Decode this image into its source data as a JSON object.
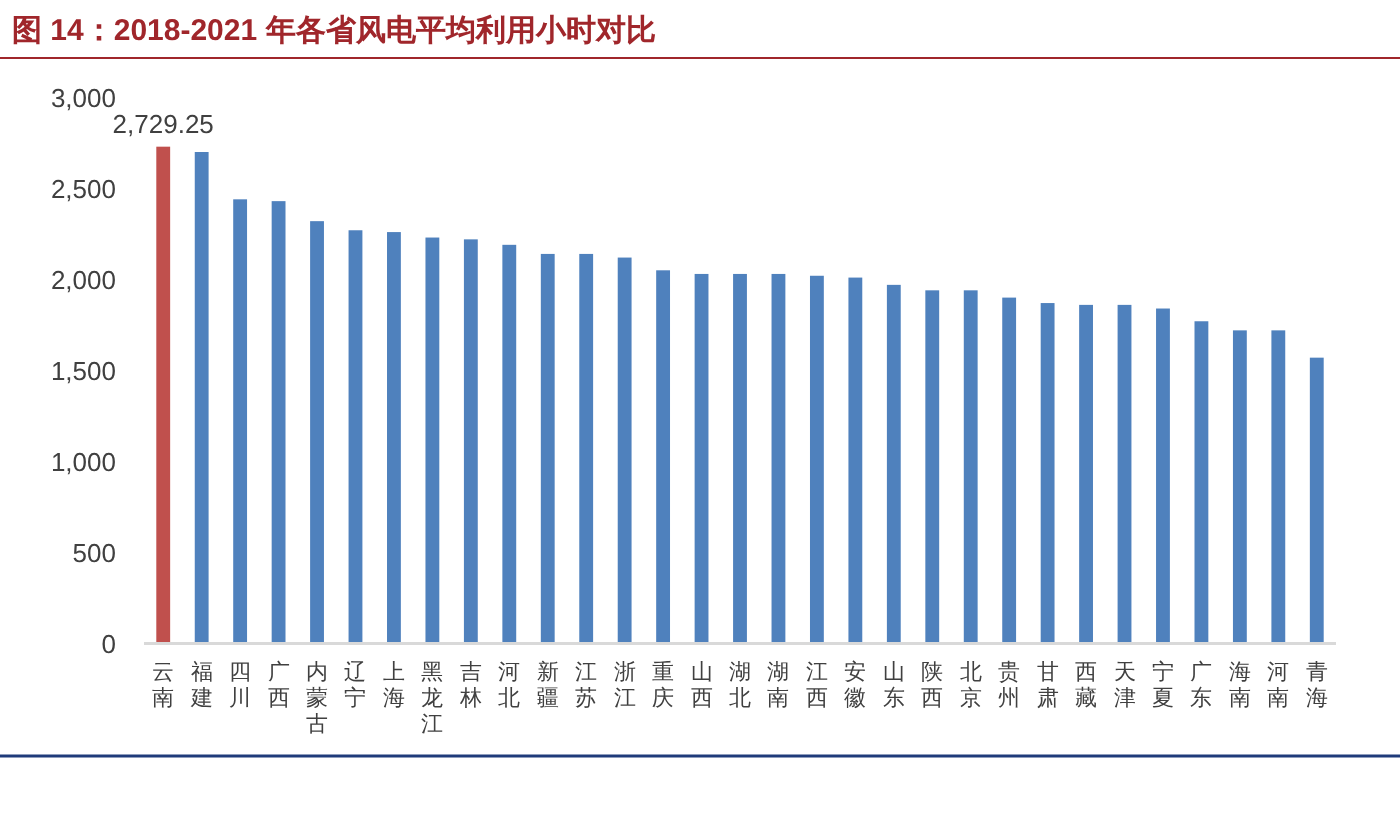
{
  "chart_data": {
    "type": "bar",
    "title": "图 14：2018-2021 年各省风电平均利用小时对比",
    "categories": [
      "云南",
      "福建",
      "四川",
      "广西",
      "内蒙古",
      "辽宁",
      "上海",
      "黑龙江",
      "吉林",
      "河北",
      "新疆",
      "江苏",
      "浙江",
      "重庆",
      "山西",
      "湖北",
      "湖南",
      "江西",
      "安徽",
      "山东",
      "陕西",
      "北京",
      "贵州",
      "甘肃",
      "西藏",
      "天津",
      "宁夏",
      "广东",
      "海南",
      "河南",
      "青海"
    ],
    "values": [
      2729.25,
      2700,
      2440,
      2430,
      2320,
      2270,
      2260,
      2230,
      2220,
      2190,
      2140,
      2140,
      2120,
      2050,
      2030,
      2030,
      2030,
      2020,
      2010,
      1970,
      1940,
      1940,
      1900,
      1870,
      1860,
      1860,
      1840,
      1770,
      1720,
      1720,
      1570
    ],
    "colors": [
      "#c0504d",
      "#4f81bd",
      "#4f81bd",
      "#4f81bd",
      "#4f81bd",
      "#4f81bd",
      "#4f81bd",
      "#4f81bd",
      "#4f81bd",
      "#4f81bd",
      "#4f81bd",
      "#4f81bd",
      "#4f81bd",
      "#4f81bd",
      "#4f81bd",
      "#4f81bd",
      "#4f81bd",
      "#4f81bd",
      "#4f81bd",
      "#4f81bd",
      "#4f81bd",
      "#4f81bd",
      "#4f81bd",
      "#4f81bd",
      "#4f81bd",
      "#4f81bd",
      "#4f81bd",
      "#4f81bd",
      "#4f81bd",
      "#4f81bd",
      "#4f81bd"
    ],
    "value_labels": [
      "2,729.25",
      null,
      null,
      null,
      null,
      null,
      null,
      null,
      null,
      null,
      null,
      null,
      null,
      null,
      null,
      null,
      null,
      null,
      null,
      null,
      null,
      null,
      null,
      null,
      null,
      null,
      null,
      null,
      null,
      null,
      null
    ],
    "ylim": [
      0,
      3000
    ],
    "yticks": [
      0,
      500,
      {
        "value": 1000,
        "label": "1,000"
      },
      {
        "value": 1500,
        "label": "1,500"
      },
      {
        "value": 2000,
        "label": "2,000"
      },
      {
        "value": 2500,
        "label": "2,500"
      },
      {
        "value": 3000,
        "label": "3,000"
      }
    ]
  }
}
